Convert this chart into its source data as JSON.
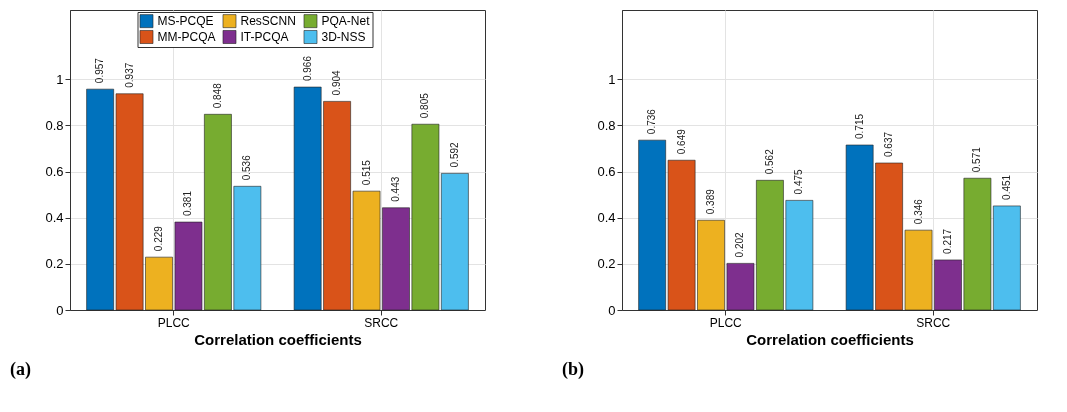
{
  "chart_data": [
    {
      "type": "bar",
      "categories": [
        "PLCC",
        "SRCC"
      ],
      "xlabel": "Correlation coefficients",
      "ylim": [
        0,
        1.3
      ],
      "yticks": [
        0,
        0.2,
        0.4,
        0.6,
        0.8,
        1
      ],
      "grid": true,
      "legend": "top",
      "data_labels": true,
      "annotations": [
        "(a)"
      ],
      "series": [
        {
          "name": "MS-PCQE",
          "color": "#0072bd",
          "values": [
            0.957,
            0.966
          ]
        },
        {
          "name": "MM-PCQA",
          "color": "#d95319",
          "values": [
            0.937,
            0.904
          ]
        },
        {
          "name": "ResSCNN",
          "color": "#edb120",
          "values": [
            0.229,
            0.515
          ]
        },
        {
          "name": "IT-PCQA",
          "color": "#7e2f8e",
          "values": [
            0.381,
            0.443
          ]
        },
        {
          "name": "PQA-Net",
          "color": "#77ac30",
          "values": [
            0.848,
            0.805
          ]
        },
        {
          "name": "3D-NSS",
          "color": "#4dbeee",
          "values": [
            0.536,
            0.592
          ]
        }
      ]
    },
    {
      "type": "bar",
      "categories": [
        "PLCC",
        "SRCC"
      ],
      "xlabel": "Correlation coefficients",
      "ylim": [
        0,
        1.3
      ],
      "yticks": [
        0,
        0.2,
        0.4,
        0.6,
        0.8,
        1
      ],
      "grid": true,
      "legend": "top",
      "data_labels": true,
      "annotations": [
        "(b)"
      ],
      "series": [
        {
          "name": "MS-PCQE",
          "color": "#0072bd",
          "values": [
            0.736,
            0.715
          ]
        },
        {
          "name": "MM-PCQA",
          "color": "#d95319",
          "values": [
            0.649,
            0.637
          ]
        },
        {
          "name": "ResSCNN",
          "color": "#edb120",
          "values": [
            0.389,
            0.346
          ]
        },
        {
          "name": "IT-PCQA",
          "color": "#7e2f8e",
          "values": [
            0.202,
            0.217
          ]
        },
        {
          "name": "PQA-Net",
          "color": "#77ac30",
          "values": [
            0.562,
            0.571
          ]
        },
        {
          "name": "3D-NSS",
          "color": "#4dbeee",
          "values": [
            0.475,
            0.451
          ]
        }
      ]
    }
  ]
}
